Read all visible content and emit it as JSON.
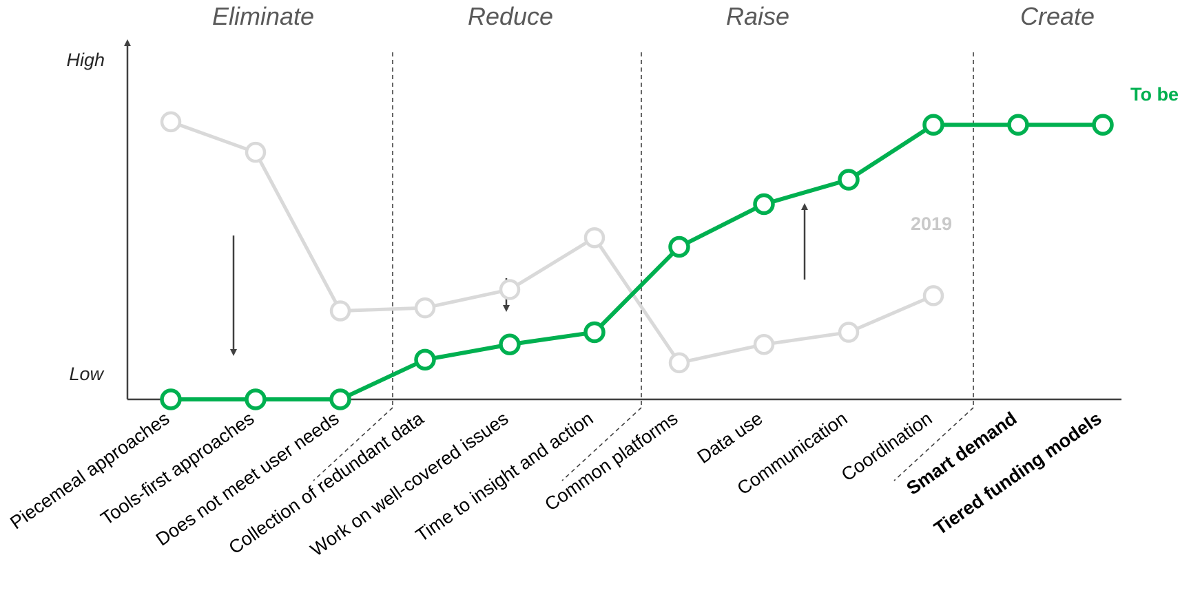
{
  "chart_data": {
    "type": "line",
    "sections": [
      "Eliminate",
      "Reduce",
      "Raise",
      "Create"
    ],
    "y_levels": {
      "high": "High",
      "low": "Low"
    },
    "ylim": [
      0,
      100
    ],
    "categories": [
      "Piecemeal approaches",
      "Tools-first approaches",
      "Does not meet user needs",
      "Collection of redundant data",
      "Work on well-covered issues",
      "Time to insight and action",
      "Common platforms",
      "Data use",
      "Communication",
      "Coordination",
      "Smart demand",
      "Tiered funding models"
    ],
    "bold_categories": [
      "Smart demand",
      "Tiered funding models"
    ],
    "series": [
      {
        "name": "2019",
        "color": "#d9d9d9",
        "values": [
          91,
          81,
          29,
          30,
          36,
          53,
          12,
          18,
          22,
          34,
          null,
          null
        ]
      },
      {
        "name": "To be",
        "color": "#00b050",
        "values": [
          0,
          0,
          0,
          13,
          18,
          22,
          50,
          64,
          72,
          90,
          90,
          90
        ]
      }
    ],
    "trend_arrows": [
      "down",
      "down",
      "up"
    ],
    "grid": false
  }
}
